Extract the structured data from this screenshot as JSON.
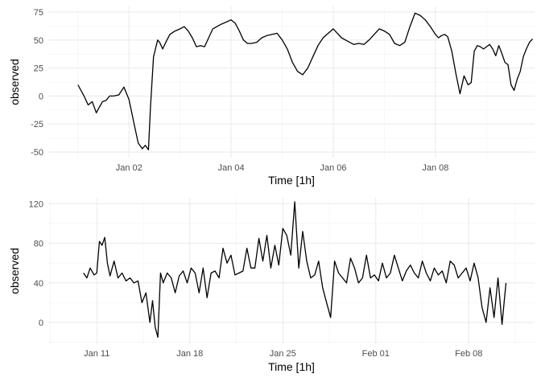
{
  "chart_data": [
    {
      "type": "line",
      "xlabel": "Time [1h]",
      "ylabel": "observed",
      "x_ticks": [
        1,
        3,
        5,
        7
      ],
      "x_tick_labels": [
        "Jan 02",
        "Jan 04",
        "Jan 06",
        "Jan 08"
      ],
      "y_ticks": [
        -50,
        -25,
        0,
        25,
        50,
        75
      ],
      "xlim": [
        -0.58,
        8.94
      ],
      "ylim": [
        -55,
        80
      ],
      "grid": true,
      "x": [
        0,
        0.12,
        0.2,
        0.28,
        0.36,
        0.42,
        0.48,
        0.55,
        0.62,
        0.7,
        0.8,
        0.9,
        1.0,
        1.1,
        1.18,
        1.26,
        1.32,
        1.38,
        1.42,
        1.48,
        1.56,
        1.6,
        1.66,
        1.72,
        1.8,
        1.9,
        2.0,
        2.08,
        2.16,
        2.24,
        2.32,
        2.4,
        2.48,
        2.56,
        2.64,
        2.72,
        2.8,
        2.9,
        3.0,
        3.08,
        3.16,
        3.24,
        3.32,
        3.4,
        3.5,
        3.6,
        3.7,
        3.8,
        3.9,
        4.0,
        4.1,
        4.2,
        4.3,
        4.4,
        4.5,
        4.6,
        4.7,
        4.8,
        4.9,
        5.0,
        5.08,
        5.16,
        5.24,
        5.32,
        5.4,
        5.5,
        5.6,
        5.7,
        5.8,
        5.9,
        6.0,
        6.1,
        6.2,
        6.3,
        6.4,
        6.5,
        6.6,
        6.7,
        6.8,
        6.9,
        7.0,
        7.06,
        7.12,
        7.18,
        7.24,
        7.32,
        7.4,
        7.48,
        7.56,
        7.64,
        7.7,
        7.76,
        7.82,
        7.88,
        7.94,
        8.0,
        8.06,
        8.12,
        8.18,
        8.24,
        8.3,
        8.36,
        8.42,
        8.48,
        8.54,
        8.6,
        8.66,
        8.72,
        8.78,
        8.84,
        8.9
      ],
      "y": [
        10,
        0,
        -8,
        -5,
        -15,
        -10,
        -5,
        -4,
        0,
        0,
        1,
        8,
        -3,
        -25,
        -42,
        -47,
        -44,
        -48,
        -10,
        35,
        50,
        48,
        42,
        48,
        55,
        58,
        60,
        62,
        58,
        52,
        44,
        45,
        44,
        52,
        60,
        62,
        64,
        66,
        68,
        65,
        58,
        50,
        47,
        47,
        48,
        52,
        54,
        55,
        56,
        50,
        42,
        30,
        22,
        19,
        25,
        35,
        45,
        52,
        56,
        60,
        56,
        52,
        50,
        48,
        46,
        47,
        46,
        50,
        55,
        60,
        58,
        55,
        47,
        45,
        48,
        62,
        74,
        72,
        68,
        62,
        55,
        52,
        54,
        55,
        53,
        40,
        20,
        2,
        18,
        10,
        12,
        40,
        45,
        44,
        42,
        44,
        46,
        42,
        36,
        45,
        38,
        30,
        28,
        10,
        5,
        15,
        22,
        35,
        42,
        48,
        51
      ]
    },
    {
      "type": "line",
      "xlabel": "Time [1h]",
      "ylabel": "observed",
      "x_ticks": [
        1,
        8,
        15,
        22,
        29
      ],
      "x_tick_labels": [
        "Jan 11",
        "Jan 18",
        "Jan 25",
        "Feb 01",
        "Feb 08"
      ],
      "y_ticks": [
        0,
        40,
        80,
        120
      ],
      "xlim": [
        -2.65,
        33.95
      ],
      "ylim": [
        -22,
        126
      ],
      "grid": true,
      "x": [
        0,
        0.25,
        0.5,
        0.8,
        1.0,
        1.2,
        1.4,
        1.6,
        1.8,
        2.0,
        2.3,
        2.6,
        2.9,
        3.2,
        3.5,
        3.8,
        4.1,
        4.4,
        4.7,
        5.0,
        5.2,
        5.4,
        5.6,
        5.8,
        6.0,
        6.3,
        6.6,
        6.9,
        7.2,
        7.5,
        7.8,
        8.1,
        8.4,
        8.7,
        9.0,
        9.3,
        9.6,
        9.9,
        10.2,
        10.5,
        10.8,
        11.1,
        11.4,
        11.7,
        12.0,
        12.3,
        12.6,
        12.9,
        13.2,
        13.5,
        13.8,
        14.1,
        14.4,
        14.7,
        15.0,
        15.3,
        15.6,
        15.9,
        16.2,
        16.5,
        16.8,
        17.1,
        17.4,
        17.7,
        18.0,
        18.3,
        18.6,
        18.9,
        19.2,
        19.5,
        19.8,
        20.1,
        20.4,
        20.7,
        21.0,
        21.3,
        21.6,
        21.9,
        22.2,
        22.5,
        22.8,
        23.1,
        23.4,
        23.7,
        24.0,
        24.3,
        24.6,
        24.9,
        25.2,
        25.5,
        25.8,
        26.1,
        26.4,
        26.7,
        27.0,
        27.3,
        27.6,
        27.9,
        28.2,
        28.5,
        28.8,
        29.1,
        29.4,
        29.7,
        30.0,
        30.3,
        30.6,
        30.9,
        31.2,
        31.5,
        31.8
      ],
      "y": [
        50,
        45,
        55,
        48,
        50,
        82,
        78,
        86,
        60,
        47,
        62,
        45,
        50,
        42,
        45,
        40,
        42,
        20,
        30,
        0,
        22,
        -5,
        -15,
        50,
        40,
        50,
        45,
        30,
        47,
        52,
        40,
        55,
        50,
        30,
        55,
        25,
        50,
        52,
        45,
        75,
        60,
        68,
        48,
        50,
        52,
        75,
        55,
        55,
        85,
        62,
        88,
        55,
        78,
        58,
        95,
        88,
        68,
        122,
        55,
        92,
        62,
        45,
        48,
        62,
        35,
        20,
        5,
        62,
        50,
        45,
        40,
        65,
        55,
        40,
        45,
        68,
        45,
        48,
        42,
        60,
        45,
        50,
        68,
        55,
        42,
        52,
        58,
        50,
        45,
        62,
        50,
        42,
        55,
        48,
        52,
        40,
        62,
        58,
        45,
        50,
        55,
        42,
        60,
        45,
        15,
        0,
        35,
        5,
        45,
        -2,
        40
      ]
    }
  ]
}
